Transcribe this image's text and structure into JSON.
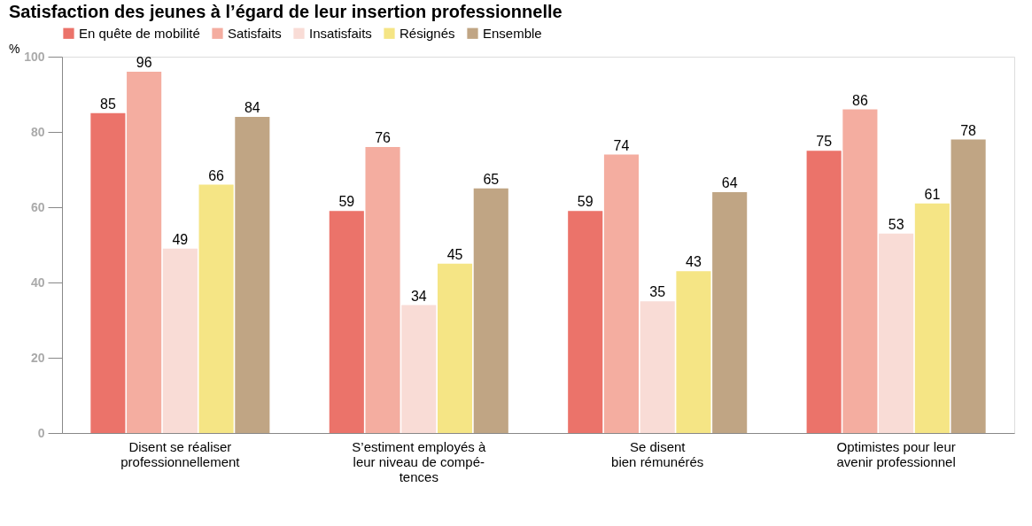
{
  "chart_data": {
    "type": "bar",
    "title": "Satisfaction des jeunes à l’égard de leur insertion professionnelle",
    "ylabel": "%",
    "categories": [
      "Disent se réaliser\nprofessionnellement",
      "S’estiment employés à\nleur niveau de compé-\ntences",
      "Se disent\nbien rémunérés",
      "Optimistes pour leur\navenir professionnel"
    ],
    "series": [
      {
        "name": "En quête de mobilité",
        "color": "#eb736a",
        "values": [
          85,
          59,
          59,
          75
        ]
      },
      {
        "name": "Satisfaits",
        "color": "#f4ada0",
        "values": [
          96,
          76,
          74,
          86
        ]
      },
      {
        "name": "Insatisfaits",
        "color": "#f9dcd6",
        "values": [
          49,
          34,
          35,
          53
        ]
      },
      {
        "name": "Résignés",
        "color": "#f5e585",
        "values": [
          66,
          45,
          43,
          61
        ]
      },
      {
        "name": "Ensemble",
        "color": "#c0a584",
        "values": [
          84,
          65,
          64,
          78
        ]
      }
    ],
    "ylim": [
      0,
      100
    ],
    "yticks": [
      0,
      20,
      40,
      60,
      80,
      100
    ],
    "grid": false,
    "legend": "top",
    "data_labels": true
  }
}
